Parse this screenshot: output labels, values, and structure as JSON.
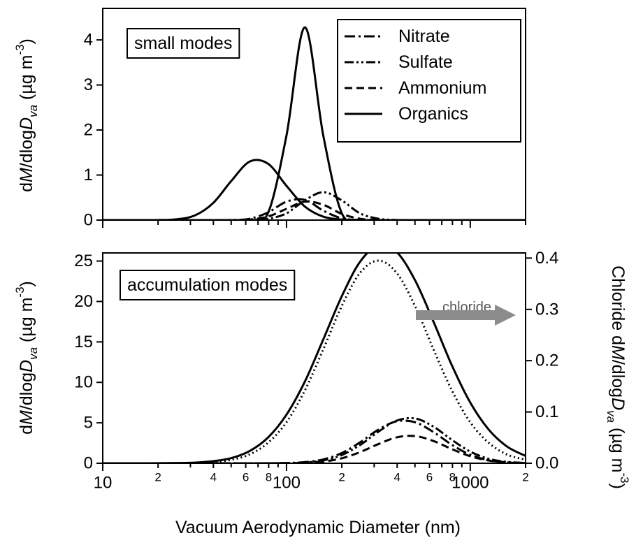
{
  "chart_data": [
    {
      "type": "line",
      "log_x": true,
      "xlim": [
        10,
        2000
      ],
      "ylim": [
        0,
        4.7
      ],
      "xticks": [
        10,
        20,
        30,
        40,
        50,
        60,
        70,
        80,
        90,
        100,
        200,
        300,
        400,
        500,
        600,
        700,
        800,
        900,
        1000,
        2000
      ],
      "xtick_labels": false,
      "yticks": [
        0,
        1,
        2,
        3,
        4
      ],
      "ylabel": [
        "d",
        "M",
        "/dlog",
        "D",
        "va",
        " (µg m",
        "-3",
        ")"
      ],
      "annotation": "small modes",
      "legend": "upper right",
      "x": [
        10,
        12.6,
        15.8,
        20,
        25.1,
        31.6,
        39.8,
        50.1,
        63.1,
        79.4,
        100,
        125.9,
        158.5,
        199.5,
        251.2,
        316.2,
        398.1,
        501.2,
        631,
        794.3,
        1000,
        1258.9,
        1584.9,
        1995.3
      ],
      "series": [
        {
          "name": "Nitrate",
          "style": "dashdot",
          "color": "#000000",
          "values": [
            0,
            0,
            0,
            0,
            0,
            0,
            0,
            0.002,
            0.03,
            0.17,
            0.41,
            0.45,
            0.21,
            0.04,
            0.004,
            0,
            0,
            0,
            0,
            0,
            0,
            0,
            0,
            0
          ]
        },
        {
          "name": "Sulfate",
          "style": "dashdotdot",
          "color": "#000000",
          "values": [
            0,
            0,
            0,
            0,
            0,
            0,
            0,
            0,
            0.002,
            0.03,
            0.15,
            0.44,
            0.62,
            0.44,
            0.15,
            0.03,
            0.002,
            0,
            0,
            0,
            0,
            0,
            0,
            0
          ]
        },
        {
          "name": "Ammonium",
          "style": "dashed",
          "color": "#000000",
          "values": [
            0,
            0,
            0,
            0,
            0,
            0,
            0,
            0,
            0.012,
            0.08,
            0.25,
            0.41,
            0.34,
            0.14,
            0.03,
            0.003,
            0,
            0,
            0,
            0,
            0,
            0,
            0,
            0
          ]
        },
        {
          "name": "Organics",
          "style": "solid",
          "color": "#000000",
          "values": [
            0,
            0,
            0,
            0,
            0,
            0,
            0,
            0,
            0.003,
            0.16,
            1.88,
            4.28,
            1.88,
            0.16,
            0.003,
            0,
            0,
            0,
            0,
            0,
            0,
            0,
            0,
            0
          ]
        },
        {
          "style": "solid",
          "color": "#000000",
          "values": [
            0,
            0,
            0,
            0.002,
            0.018,
            0.1,
            0.375,
            0.87,
            1.3,
            1.25,
            0.76,
            0.3,
            0.076,
            0.012,
            0.001,
            0,
            0,
            0,
            0,
            0,
            0,
            0,
            0,
            0
          ]
        }
      ]
    },
    {
      "type": "line",
      "log_x": true,
      "xlim": [
        10,
        2000
      ],
      "ylim": [
        0,
        26
      ],
      "y2lim": [
        0,
        0.41
      ],
      "xticks": [
        10,
        {
          "value": 20,
          "label": "2"
        },
        {
          "value": 40,
          "label": "4"
        },
        {
          "value": 60,
          "label": "6"
        },
        {
          "value": 80,
          "label": "8"
        },
        100,
        {
          "value": 200,
          "label": "2"
        },
        {
          "value": 400,
          "label": "4"
        },
        {
          "value": 600,
          "label": "6"
        },
        {
          "value": 800,
          "label": "8"
        },
        1000,
        {
          "value": 2000,
          "label": "2"
        }
      ],
      "xminor": [
        30,
        50,
        70,
        90,
        300,
        500,
        700,
        900
      ],
      "yticks": [
        0,
        5,
        10,
        15,
        20,
        25
      ],
      "y2ticks": [
        {
          "value": 0,
          "label": "0.0"
        },
        0.1,
        0.2,
        0.3,
        0.4
      ],
      "ylabel": [
        "d",
        "M",
        "/dlog",
        "D",
        "va",
        " (µg m",
        "-3",
        ")"
      ],
      "y2label": [
        "Chloride d",
        "M",
        "/dlog",
        "D",
        "va",
        " (µg m",
        "-3",
        ")"
      ],
      "xlabel": "Vacuum Aerodynamic Diameter (nm)",
      "annotation": "accumulation modes",
      "arrow_label": "chloride",
      "arrow_color": "#8c8c8c",
      "x": [
        10,
        12.6,
        15.8,
        20,
        25.1,
        31.6,
        39.8,
        50.1,
        63.1,
        79.4,
        100,
        125.9,
        158.5,
        199.5,
        251.2,
        316.2,
        398.1,
        501.2,
        631,
        794.3,
        1000,
        1258.9,
        1584.9,
        1995.3
      ],
      "series": [
        {
          "style": "dashdot",
          "color": "#000000",
          "values": [
            0,
            0,
            0,
            0,
            0,
            0,
            0,
            0,
            0,
            0.006,
            0.03,
            0.14,
            0.47,
            1.25,
            2.58,
            4.15,
            5.19,
            5.07,
            3.85,
            2.28,
            1.05,
            0.38,
            0.11,
            0.02
          ]
        },
        {
          "style": "dashdotdot",
          "color": "#000000",
          "values": [
            0,
            0,
            0,
            0,
            0,
            0,
            0,
            0,
            0,
            0.003,
            0.02,
            0.1,
            0.35,
            1.01,
            2.25,
            3.9,
            5.27,
            5.54,
            4.53,
            2.89,
            1.44,
            0.55,
            0.17,
            0.04
          ]
        },
        {
          "style": "dashed",
          "color": "#000000",
          "values": [
            0,
            0,
            0,
            0,
            0,
            0,
            0,
            0,
            0,
            0.002,
            0.01,
            0.06,
            0.21,
            0.61,
            1.37,
            2.37,
            3.2,
            3.36,
            2.75,
            1.75,
            0.87,
            0.34,
            0.1,
            0.02
          ]
        },
        {
          "style": "solid",
          "color": "#000000",
          "values": [
            0,
            0,
            0.002,
            0.007,
            0.03,
            0.08,
            0.25,
            0.64,
            1.52,
            3.19,
            6.01,
            10.1,
            15.3,
            20.6,
            24.9,
            26.9,
            26.1,
            22.6,
            17.5,
            12.1,
            7.5,
            4.17,
            2.07,
            0.92
          ]
        },
        {
          "style": "dotted",
          "color": "#000000",
          "axis": "y2",
          "values": [
            0,
            0,
            0,
            0,
            0.0002,
            0.0007,
            0.0023,
            0.0067,
            0.0173,
            0.04,
            0.08,
            0.142,
            0.222,
            0.306,
            0.371,
            0.395,
            0.371,
            0.306,
            0.222,
            0.142,
            0.08,
            0.04,
            0.017,
            0.007
          ]
        }
      ]
    }
  ]
}
